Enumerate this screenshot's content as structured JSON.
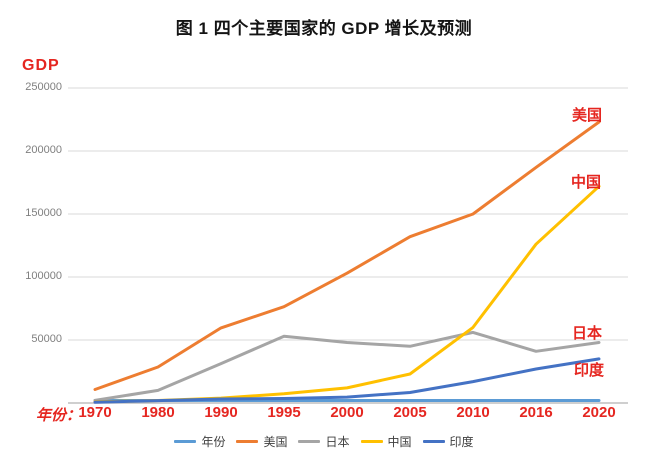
{
  "title": "图 1 四个主要国家的 GDP 增长及预测",
  "colors": {
    "red_label": "#e52620",
    "title_text": "#141414",
    "tick_gray": "#7f7f7f",
    "gridline": "#d9d9d9",
    "axis_line": "#bfbfbf",
    "legend_text": "#3f3f3f"
  },
  "y_axis": {
    "label": "GDP",
    "ticks": [
      "250000",
      "200000",
      "150000",
      "100000",
      "50000"
    ]
  },
  "x_axis": {
    "prefix_label": "年份："
  },
  "chart_data": {
    "type": "line",
    "title": "图 1 四个主要国家的 GDP 增长及预测",
    "xlabel": "年份",
    "ylabel": "GDP",
    "ylim": [
      0,
      250000
    ],
    "grid": true,
    "legend_position": "bottom",
    "categories": [
      "1970",
      "1980",
      "1990",
      "1995",
      "2000",
      "2005",
      "2010",
      "2016",
      "2020"
    ],
    "series": [
      {
        "key": "years",
        "name": "年份",
        "color": "#5b9bd5",
        "values": [
          1970,
          1980,
          1990,
          1995,
          2000,
          2005,
          2010,
          2016,
          2020
        ]
      },
      {
        "key": "usa",
        "name": "美国",
        "color": "#ed7d31",
        "values": [
          10700,
          28600,
          59600,
          76400,
          103000,
          132000,
          150000,
          187000,
          223000
        ]
      },
      {
        "key": "japan",
        "name": "日本",
        "color": "#a5a5a5",
        "values": [
          2100,
          10000,
          31300,
          53000,
          48000,
          45000,
          56000,
          41000,
          48000
        ]
      },
      {
        "key": "china",
        "name": "中国",
        "color": "#ffc000",
        "values": [
          900,
          2000,
          3900,
          7300,
          12000,
          23000,
          60000,
          126000,
          172000
        ]
      },
      {
        "key": "india",
        "name": "印度",
        "color": "#4472c4",
        "values": [
          600,
          1900,
          3200,
          3600,
          4700,
          8300,
          17000,
          27000,
          35000
        ]
      }
    ]
  }
}
